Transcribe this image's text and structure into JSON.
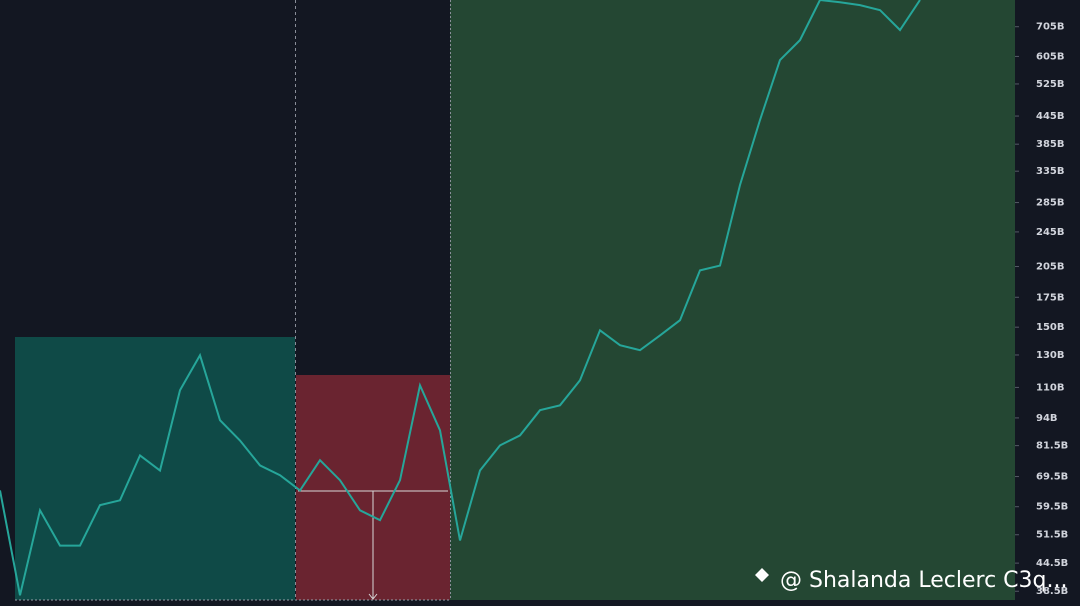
{
  "chart_data": {
    "type": "line",
    "log_scale": true,
    "color": "#26a69a",
    "values": [
      64.7,
      37.7,
      58.4,
      48.7,
      48.7,
      60.0,
      61.5,
      77.5,
      71.7,
      108.4,
      129.8,
      92.9,
      83.7,
      73.6,
      70.0,
      64.7,
      75.6,
      68.2,
      58.4,
      55.5,
      68.2,
      111.2,
      88.2,
      50.0,
      71.7,
      81.6,
      85.9,
      97.8,
      100.3,
      114.1,
      147.6,
      136.7,
      133.2,
      143.8,
      155.5,
      201,
      206,
      312,
      436,
      594,
      658,
      809,
      800,
      788,
      768,
      693,
      809
    ],
    "ylim": [
      36.8,
      809
    ],
    "yticks": [
      {
        "value": 705,
        "label": "705B"
      },
      {
        "value": 605,
        "label": "605B"
      },
      {
        "value": 525,
        "label": "525B"
      },
      {
        "value": 445,
        "label": "445B"
      },
      {
        "value": 385,
        "label": "385B"
      },
      {
        "value": 335,
        "label": "335B"
      },
      {
        "value": 285,
        "label": "285B"
      },
      {
        "value": 245,
        "label": "245B"
      },
      {
        "value": 205,
        "label": "205B"
      },
      {
        "value": 175,
        "label": "175B"
      },
      {
        "value": 150,
        "label": "150B"
      },
      {
        "value": 130,
        "label": "130B"
      },
      {
        "value": 110,
        "label": "110B"
      },
      {
        "value": 94,
        "label": "94B"
      },
      {
        "value": 81.5,
        "label": "81.5B"
      },
      {
        "value": 69.5,
        "label": "69.5B"
      },
      {
        "value": 59.5,
        "label": "59.5B"
      },
      {
        "value": 51.5,
        "label": "51.5B"
      },
      {
        "value": 44.5,
        "label": "44.5B"
      },
      {
        "value": 38.5,
        "label": "38.5B"
      }
    ],
    "watermark": "@ Shalanda Leclerc C3q..."
  }
}
